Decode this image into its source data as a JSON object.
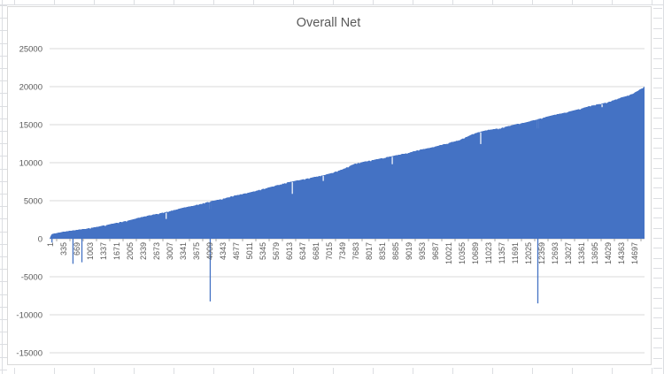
{
  "sheet": {
    "gridline_color": "#dcdee2",
    "chart_border_color": "#d9d9d9",
    "chart_background": "#ffffff"
  },
  "chart": {
    "title": "Overall Net",
    "title_color": "#595959",
    "label_color": "#595959",
    "series_color": "#4472C4",
    "gridline_color": "#d9d9d9",
    "axis_line_color": "#bfbfbf",
    "tick_color": "#a6a6a6",
    "y_tick_labels": [
      "25000",
      "20000",
      "15000",
      "10000",
      "5000",
      "0",
      "-5000",
      "-10000",
      "-15000"
    ],
    "x_tick_labels": [
      "1",
      "335",
      "669",
      "1003",
      "1337",
      "1671",
      "2005",
      "2339",
      "2673",
      "3007",
      "3341",
      "3675",
      "4009",
      "4343",
      "4677",
      "5011",
      "5345",
      "5679",
      "6013",
      "6347",
      "6681",
      "7015",
      "7349",
      "7683",
      "8017",
      "8351",
      "8685",
      "9019",
      "9353",
      "9687",
      "10021",
      "10355",
      "10689",
      "11023",
      "11357",
      "11691",
      "12025",
      "12359",
      "12693",
      "13027",
      "13361",
      "13695",
      "14029",
      "14363",
      "14697"
    ]
  },
  "chart_data": {
    "type": "area",
    "title": "Overall Net",
    "xlabel": "",
    "ylabel": "",
    "x_range": [
      1,
      15000
    ],
    "x_label_interval": 334,
    "ylim": [
      -15000,
      25000
    ],
    "y_step": 5000,
    "grid": true,
    "legend": false,
    "series_name": "Overall Net",
    "description": "Cumulative net value rising roughly linearly from 0 to about 20000 over ~15000 trades, with occasional sharp single-point drawdowns.",
    "anchors": [
      [
        0,
        0
      ],
      [
        50,
        600
      ],
      [
        330,
        930
      ],
      [
        670,
        1160
      ],
      [
        1000,
        1400
      ],
      [
        1340,
        1740
      ],
      [
        1670,
        2090
      ],
      [
        2000,
        2440
      ],
      [
        2340,
        2900
      ],
      [
        2670,
        3260
      ],
      [
        3010,
        3600
      ],
      [
        3340,
        4070
      ],
      [
        3670,
        4420
      ],
      [
        4010,
        4880
      ],
      [
        4340,
        5230
      ],
      [
        4680,
        5700
      ],
      [
        5010,
        6050
      ],
      [
        5340,
        6510
      ],
      [
        5680,
        6980
      ],
      [
        6010,
        7440
      ],
      [
        6350,
        7790
      ],
      [
        6680,
        8140
      ],
      [
        7010,
        8490
      ],
      [
        7350,
        9070
      ],
      [
        7680,
        9880
      ],
      [
        8020,
        10230
      ],
      [
        8350,
        10580
      ],
      [
        8680,
        10930
      ],
      [
        9020,
        11280
      ],
      [
        9350,
        11740
      ],
      [
        9690,
        12090
      ],
      [
        10020,
        12560
      ],
      [
        10350,
        13020
      ],
      [
        10690,
        13840
      ],
      [
        11020,
        14300
      ],
      [
        11360,
        14540
      ],
      [
        11690,
        15000
      ],
      [
        12020,
        15350
      ],
      [
        12360,
        15810
      ],
      [
        12690,
        16280
      ],
      [
        13030,
        16630
      ],
      [
        13360,
        17090
      ],
      [
        13690,
        17560
      ],
      [
        14030,
        17910
      ],
      [
        14360,
        18490
      ],
      [
        14700,
        19070
      ],
      [
        14850,
        19540
      ],
      [
        15000,
        20000
      ]
    ],
    "spikes": [
      [
        60,
        -500
      ],
      [
        590,
        -3300
      ],
      [
        815,
        -3100
      ],
      [
        4050,
        -8250
      ],
      [
        12310,
        -8500
      ]
    ],
    "notches": [
      [
        2940,
        2600
      ],
      [
        4050,
        3900
      ],
      [
        6120,
        5900
      ],
      [
        6900,
        7600
      ],
      [
        8640,
        9800
      ],
      [
        10870,
        12450
      ],
      [
        12310,
        14500
      ],
      [
        13930,
        17300
      ]
    ],
    "noise_amplitude": 140,
    "final_value": 20000
  }
}
